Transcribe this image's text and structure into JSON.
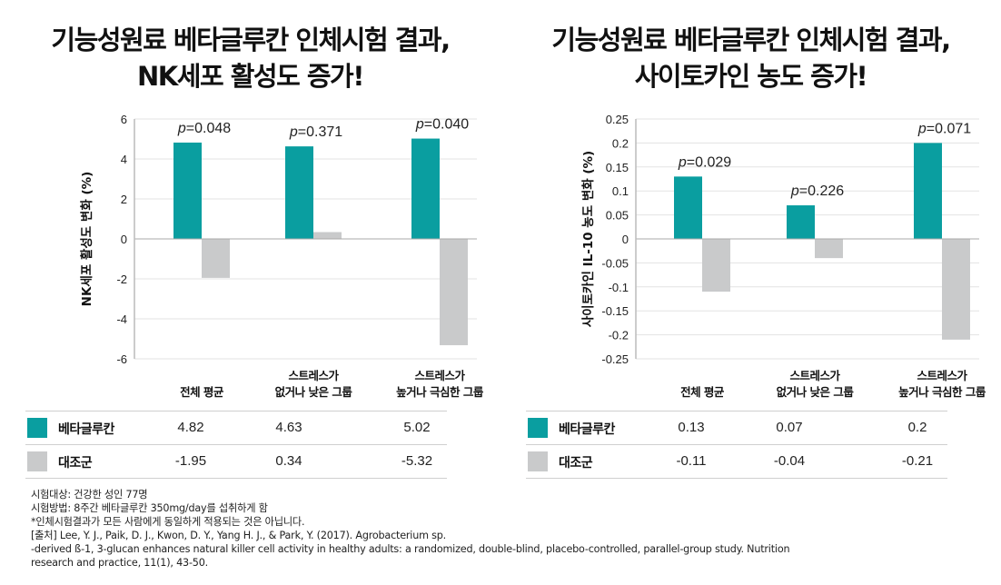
{
  "colors": {
    "beta": "#0a9ea0",
    "control": "#c9cacb",
    "grid": "#e3e3e3",
    "axis": "#bbbbbb"
  },
  "titles": {
    "left": [
      "기능성원료 베타글루칸 인체시험 결과,",
      "NK세포 활성도 증가!"
    ],
    "right": [
      "기능성원료 베타글루칸 인체시험 결과,",
      "사이토카인 농도 증가!"
    ]
  },
  "chart_data": [
    {
      "type": "bar",
      "title": "기능성원료 베타글루칸 인체시험 결과, NK세포 활성도 증가!",
      "ylabel": "NK세포 활성도 변화 (%)",
      "xlabel": "",
      "ylim": [
        -6,
        6
      ],
      "yticks": [
        "6",
        "4",
        "2",
        "0",
        "-2",
        "-4",
        "-6"
      ],
      "ytick_values": [
        6,
        4,
        2,
        0,
        -2,
        -4,
        -6
      ],
      "grid": true,
      "categories": [
        [
          "전체 평균"
        ],
        [
          "스트레스가",
          "없거나 낮은 그룹"
        ],
        [
          "스트레스가",
          "높거나 극심한 그룹"
        ]
      ],
      "category_labels": [
        "전체 평균",
        "스트레스가 없거나 낮은 그룹",
        "스트레스가 높거나 극심한 그룹"
      ],
      "series": [
        {
          "name": "베타글루칸",
          "values": [
            4.82,
            4.63,
            5.02
          ],
          "display": [
            "4.82",
            "4.63",
            "5.02"
          ]
        },
        {
          "name": "대조군",
          "values": [
            -1.95,
            0.34,
            -5.32
          ],
          "display": [
            "-1.95",
            "0.34",
            "-5.32"
          ]
        }
      ],
      "annotations": [
        {
          "italic": "p",
          "text": "=0.048"
        },
        {
          "italic": "p",
          "text": "=0.371"
        },
        {
          "italic": "p",
          "text": "=0.040"
        }
      ],
      "legend": "bottom-table"
    },
    {
      "type": "bar",
      "title": "기능성원료 베타글루칸 인체시험 결과, 사이토카인 농도 증가!",
      "ylabel": "사이토카인 IL-10 농도 변화 (%)",
      "xlabel": "",
      "ylim": [
        -0.25,
        0.25
      ],
      "yticks": [
        "0.25",
        "0.2",
        "0.15",
        "0.1",
        "0.05",
        "0",
        "-0.05",
        "-0.1",
        "-0.15",
        "-0.2",
        "-0.25"
      ],
      "ytick_values": [
        0.25,
        0.2,
        0.15,
        0.1,
        0.05,
        0,
        -0.05,
        -0.1,
        -0.15,
        -0.2,
        -0.25
      ],
      "grid": true,
      "categories": [
        [
          "전체 평균"
        ],
        [
          "스트레스가",
          "없거나 낮은 그룹"
        ],
        [
          "스트레스가",
          "높거나 극심한 그룹"
        ]
      ],
      "category_labels": [
        "전체 평균",
        "스트레스가 없거나 낮은 그룹",
        "스트레스가 높거나 극심한 그룹"
      ],
      "series": [
        {
          "name": "베타글루칸",
          "values": [
            0.13,
            0.07,
            0.2
          ],
          "display": [
            "0.13",
            "0.07",
            "0.2"
          ]
        },
        {
          "name": "대조군",
          "values": [
            -0.11,
            -0.04,
            -0.21
          ],
          "display": [
            "-0.11",
            "-0.04",
            "-0.21"
          ]
        }
      ],
      "annotations": [
        {
          "italic": "p",
          "text": "=0.029"
        },
        {
          "italic": "p",
          "text": "=0.226"
        },
        {
          "italic": "p",
          "text": "=0.071"
        }
      ],
      "legend": "bottom-table"
    }
  ],
  "footnote": {
    "lines": [
      "시험대상: 건강한 성인 77명",
      "시험방법: 8주간 베타글루칸 350mg/day를 섭취하게 함",
      "*인체시험결과가 모든 사람에게 동일하게 적용되는 것은 아닙니다.",
      "[출처] Lee, Y. J., Paik, D. J., Kwon, D. Y., Yang H. J., & Park, Y. (2017). Agrobacterium sp.",
      "-derived ß-1, 3-glucan enhances natural killer cell activity in healthy adults: a randomized, double-blind, placebo-controlled, parallel-group study. Nutrition",
      "research and practice, 11(1), 43-50."
    ]
  }
}
